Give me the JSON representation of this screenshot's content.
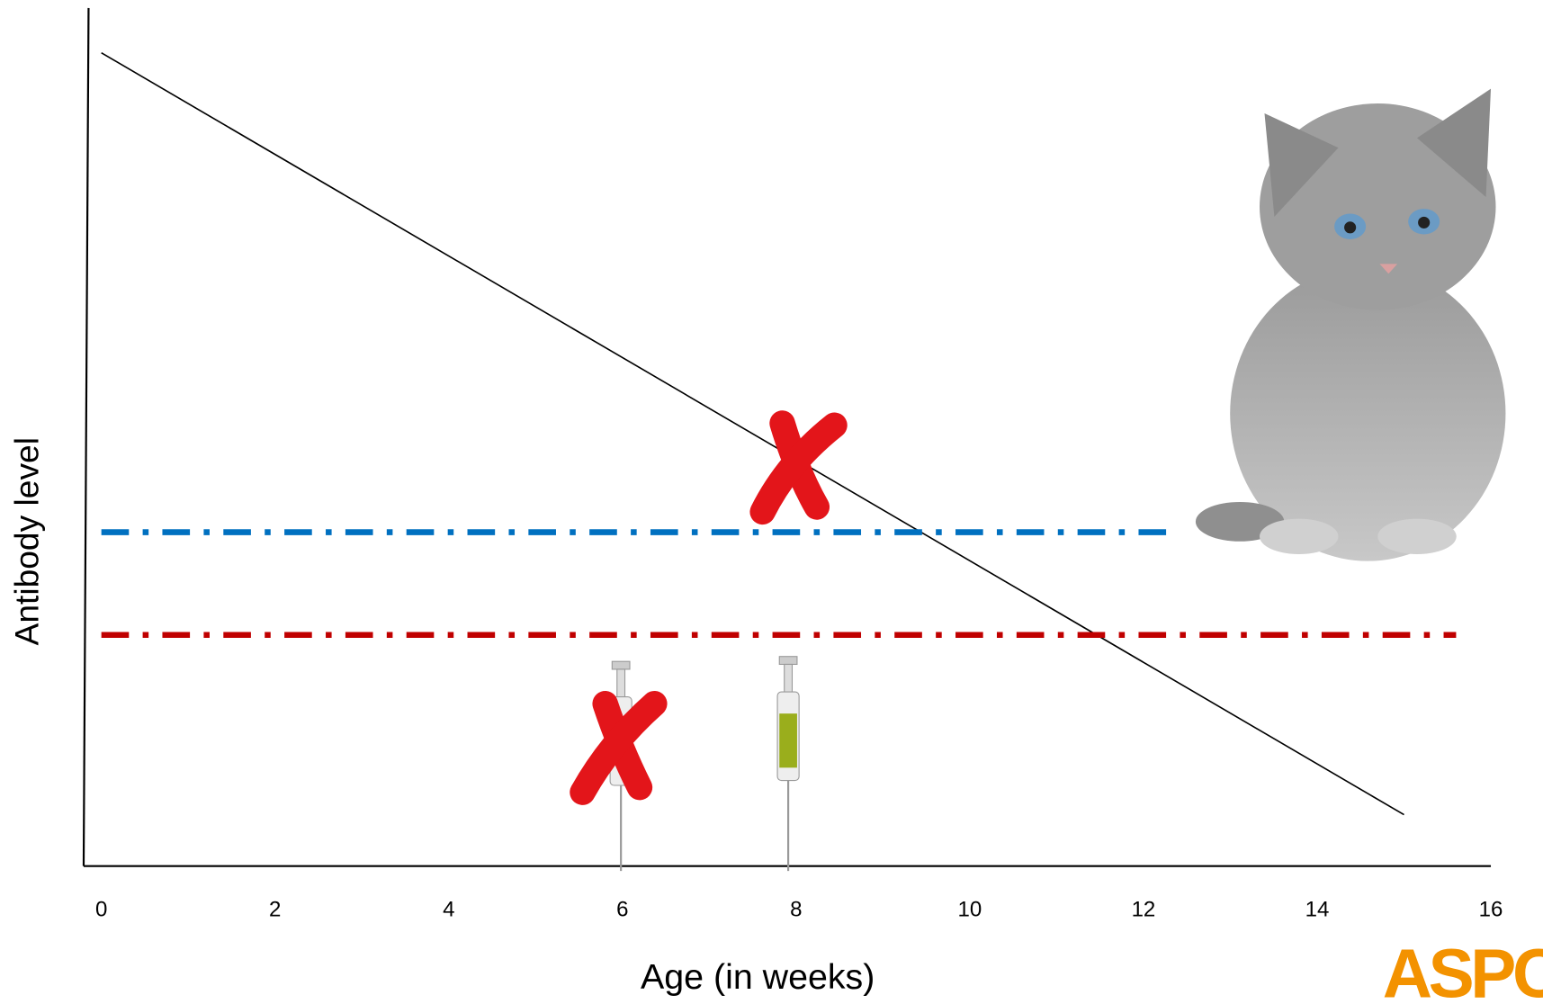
{
  "chart_data": {
    "type": "line",
    "x_label": "Age (in weeks)",
    "y_label": "Antibody level",
    "xlim": [
      0,
      16
    ],
    "xticks": [
      0,
      2,
      4,
      6,
      8,
      10,
      12,
      14,
      16
    ],
    "ylim": [
      0,
      100
    ],
    "series": [
      {
        "color": "#000000",
        "style": "solid",
        "x": [
          0,
          15
        ],
        "values": [
          95,
          6
        ]
      },
      {
        "color": "#0070c0",
        "style": "dashdot",
        "x": [
          0,
          12.3
        ],
        "values": [
          39,
          39
        ]
      },
      {
        "color": "#c00000",
        "style": "dashdot",
        "x": [
          0,
          15.6
        ],
        "values": [
          27,
          27
        ]
      }
    ]
  },
  "logo_text": "ASPC"
}
